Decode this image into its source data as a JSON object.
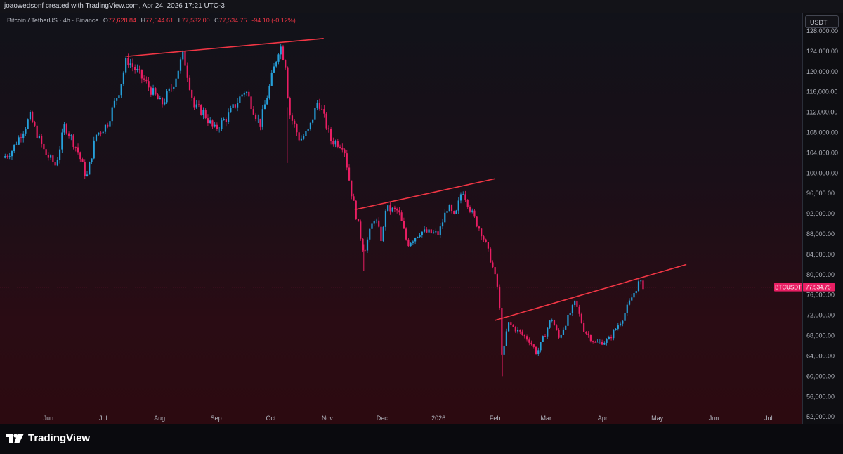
{
  "header": {
    "creator_line": "joaowedsonf created with TradingView.com, Apr 24, 2026 17:21 UTC-3",
    "symbol_line": "Bitcoin / TetherUS · 4h · Binance",
    "ohlc": {
      "o_label": "O",
      "o_value": "77,628.84",
      "h_label": "H",
      "h_value": "77,644.61",
      "l_label": "L",
      "l_value": "77,532.00",
      "c_label": "C",
      "c_value": "77,534.75",
      "change": "-94.10 (-0.12%)"
    },
    "currency": "USDT"
  },
  "footer": {
    "brand": "TradingView"
  },
  "colors": {
    "up": "#26a0da",
    "down": "#e91e63",
    "trendline": "#f23645",
    "price_tag": "#e91e63",
    "axis_text": "#b2b5be"
  },
  "chart_data": {
    "type": "candlestick",
    "symbol": "BTCUSDT",
    "timeframe": "4h",
    "last_price": 77534.75,
    "last_price_label": "77,534.75",
    "price_tag_symbol": "BTCUSDT",
    "y_ticks": [
      "128,000.00",
      "124,000.00",
      "120,000.00",
      "116,000.00",
      "112,000.00",
      "108,000.00",
      "104,000.00",
      "100,000.00",
      "96,000.00",
      "92,000.00",
      "88,000.00",
      "84,000.00",
      "80,000.00",
      "76,000.00",
      "72,000.00",
      "68,000.00",
      "64,000.00",
      "60,000.00",
      "56,000.00",
      "52,000.00"
    ],
    "y_tick_values": [
      128000,
      124000,
      120000,
      116000,
      112000,
      108000,
      104000,
      100000,
      96000,
      92000,
      88000,
      84000,
      80000,
      76000,
      72000,
      68000,
      64000,
      60000,
      56000,
      52000
    ],
    "ylim": [
      50500,
      131600
    ],
    "x_ticks": [
      "Jun",
      "Jul",
      "Aug",
      "Sep",
      "Oct",
      "Nov",
      "Dec",
      "2026",
      "Feb",
      "Mar",
      "Apr",
      "May",
      "Jun",
      "Jul"
    ],
    "x_tick_dates": [
      "2025-06-01",
      "2025-07-01",
      "2025-08-01",
      "2025-09-01",
      "2025-10-01",
      "2025-11-01",
      "2025-12-01",
      "2026-01-01",
      "2026-02-01",
      "2026-03-01",
      "2026-04-01",
      "2026-05-01",
      "2026-06-01",
      "2026-07-01"
    ],
    "xlim": [
      "2025-05-07",
      "2026-07-18"
    ],
    "close_series": [
      {
        "date": "2025-05-07",
        "price": 103000
      },
      {
        "date": "2025-05-12",
        "price": 104500
      },
      {
        "date": "2025-05-22",
        "price": 111000
      },
      {
        "date": "2025-05-30",
        "price": 104000
      },
      {
        "date": "2025-06-05",
        "price": 101500
      },
      {
        "date": "2025-06-10",
        "price": 109500
      },
      {
        "date": "2025-06-17",
        "price": 104500
      },
      {
        "date": "2025-06-22",
        "price": 99000
      },
      {
        "date": "2025-06-27",
        "price": 107500
      },
      {
        "date": "2025-07-03",
        "price": 109500
      },
      {
        "date": "2025-07-10",
        "price": 116500
      },
      {
        "date": "2025-07-14",
        "price": 122500
      },
      {
        "date": "2025-07-24",
        "price": 118000
      },
      {
        "date": "2025-08-02",
        "price": 113500
      },
      {
        "date": "2025-08-08",
        "price": 117000
      },
      {
        "date": "2025-08-14",
        "price": 123500
      },
      {
        "date": "2025-08-20",
        "price": 113000
      },
      {
        "date": "2025-08-25",
        "price": 112000
      },
      {
        "date": "2025-08-31",
        "price": 108500
      },
      {
        "date": "2025-09-07",
        "price": 111000
      },
      {
        "date": "2025-09-17",
        "price": 116500
      },
      {
        "date": "2025-09-25",
        "price": 109500
      },
      {
        "date": "2025-10-01",
        "price": 118000
      },
      {
        "date": "2025-10-06",
        "price": 125500
      },
      {
        "date": "2025-10-09",
        "price": 121500
      },
      {
        "date": "2025-10-11",
        "price": 112000
      },
      {
        "date": "2025-10-17",
        "price": 106500
      },
      {
        "date": "2025-10-22",
        "price": 108500
      },
      {
        "date": "2025-10-27",
        "price": 114500
      },
      {
        "date": "2025-11-03",
        "price": 106500
      },
      {
        "date": "2025-11-10",
        "price": 105500
      },
      {
        "date": "2025-11-14",
        "price": 96500
      },
      {
        "date": "2025-11-21",
        "price": 84500
      },
      {
        "date": "2025-11-27",
        "price": 91500
      },
      {
        "date": "2025-12-01",
        "price": 86500
      },
      {
        "date": "2025-12-03",
        "price": 93000
      },
      {
        "date": "2025-12-10",
        "price": 92500
      },
      {
        "date": "2025-12-15",
        "price": 86000
      },
      {
        "date": "2025-12-22",
        "price": 88500
      },
      {
        "date": "2026-01-01",
        "price": 88000
      },
      {
        "date": "2026-01-06",
        "price": 93500
      },
      {
        "date": "2026-01-10",
        "price": 91000
      },
      {
        "date": "2026-01-14",
        "price": 97000
      },
      {
        "date": "2026-01-20",
        "price": 91500
      },
      {
        "date": "2026-01-25",
        "price": 88000
      },
      {
        "date": "2026-01-30",
        "price": 82500
      },
      {
        "date": "2026-02-03",
        "price": 76500
      },
      {
        "date": "2026-02-05",
        "price": 63000
      },
      {
        "date": "2026-02-08",
        "price": 70500
      },
      {
        "date": "2026-02-15",
        "price": 68500
      },
      {
        "date": "2026-02-20",
        "price": 67000
      },
      {
        "date": "2026-02-24",
        "price": 64500
      },
      {
        "date": "2026-03-04",
        "price": 71500
      },
      {
        "date": "2026-03-08",
        "price": 67500
      },
      {
        "date": "2026-03-13",
        "price": 71500
      },
      {
        "date": "2026-03-17",
        "price": 74500
      },
      {
        "date": "2026-03-22",
        "price": 69000
      },
      {
        "date": "2026-03-28",
        "price": 66500
      },
      {
        "date": "2026-04-04",
        "price": 67000
      },
      {
        "date": "2026-04-12",
        "price": 71500
      },
      {
        "date": "2026-04-17",
        "price": 75500
      },
      {
        "date": "2026-04-21",
        "price": 78500
      },
      {
        "date": "2026-04-24",
        "price": 77534.75
      }
    ],
    "trendlines": [
      {
        "start_date": "2025-07-14",
        "start_price": 123000,
        "end_date": "2025-10-30",
        "end_price": 126500
      },
      {
        "start_date": "2025-11-16",
        "start_price": 92800,
        "end_date": "2026-02-01",
        "end_price": 98900
      },
      {
        "start_date": "2026-02-01",
        "start_price": 71000,
        "end_date": "2026-05-17",
        "end_price": 82000
      }
    ],
    "grid": false
  }
}
